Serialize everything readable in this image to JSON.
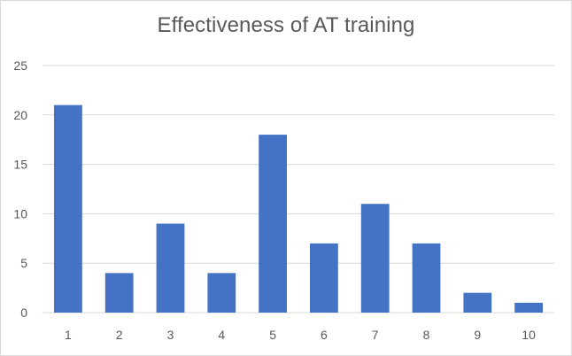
{
  "chart_data": {
    "type": "bar",
    "title": "Effectiveness of AT training",
    "xlabel": "",
    "ylabel": "",
    "categories": [
      "1",
      "2",
      "3",
      "4",
      "5",
      "6",
      "7",
      "8",
      "9",
      "10"
    ],
    "values": [
      21,
      4,
      9,
      4,
      18,
      7,
      11,
      7,
      2,
      1
    ],
    "ylim": [
      0,
      25
    ],
    "yticks": [
      "0",
      "5",
      "10",
      "15",
      "20",
      "25"
    ],
    "grid": true,
    "legend": "none",
    "bar_color": "#4472c4",
    "grid_color": "#d9d9d9"
  }
}
